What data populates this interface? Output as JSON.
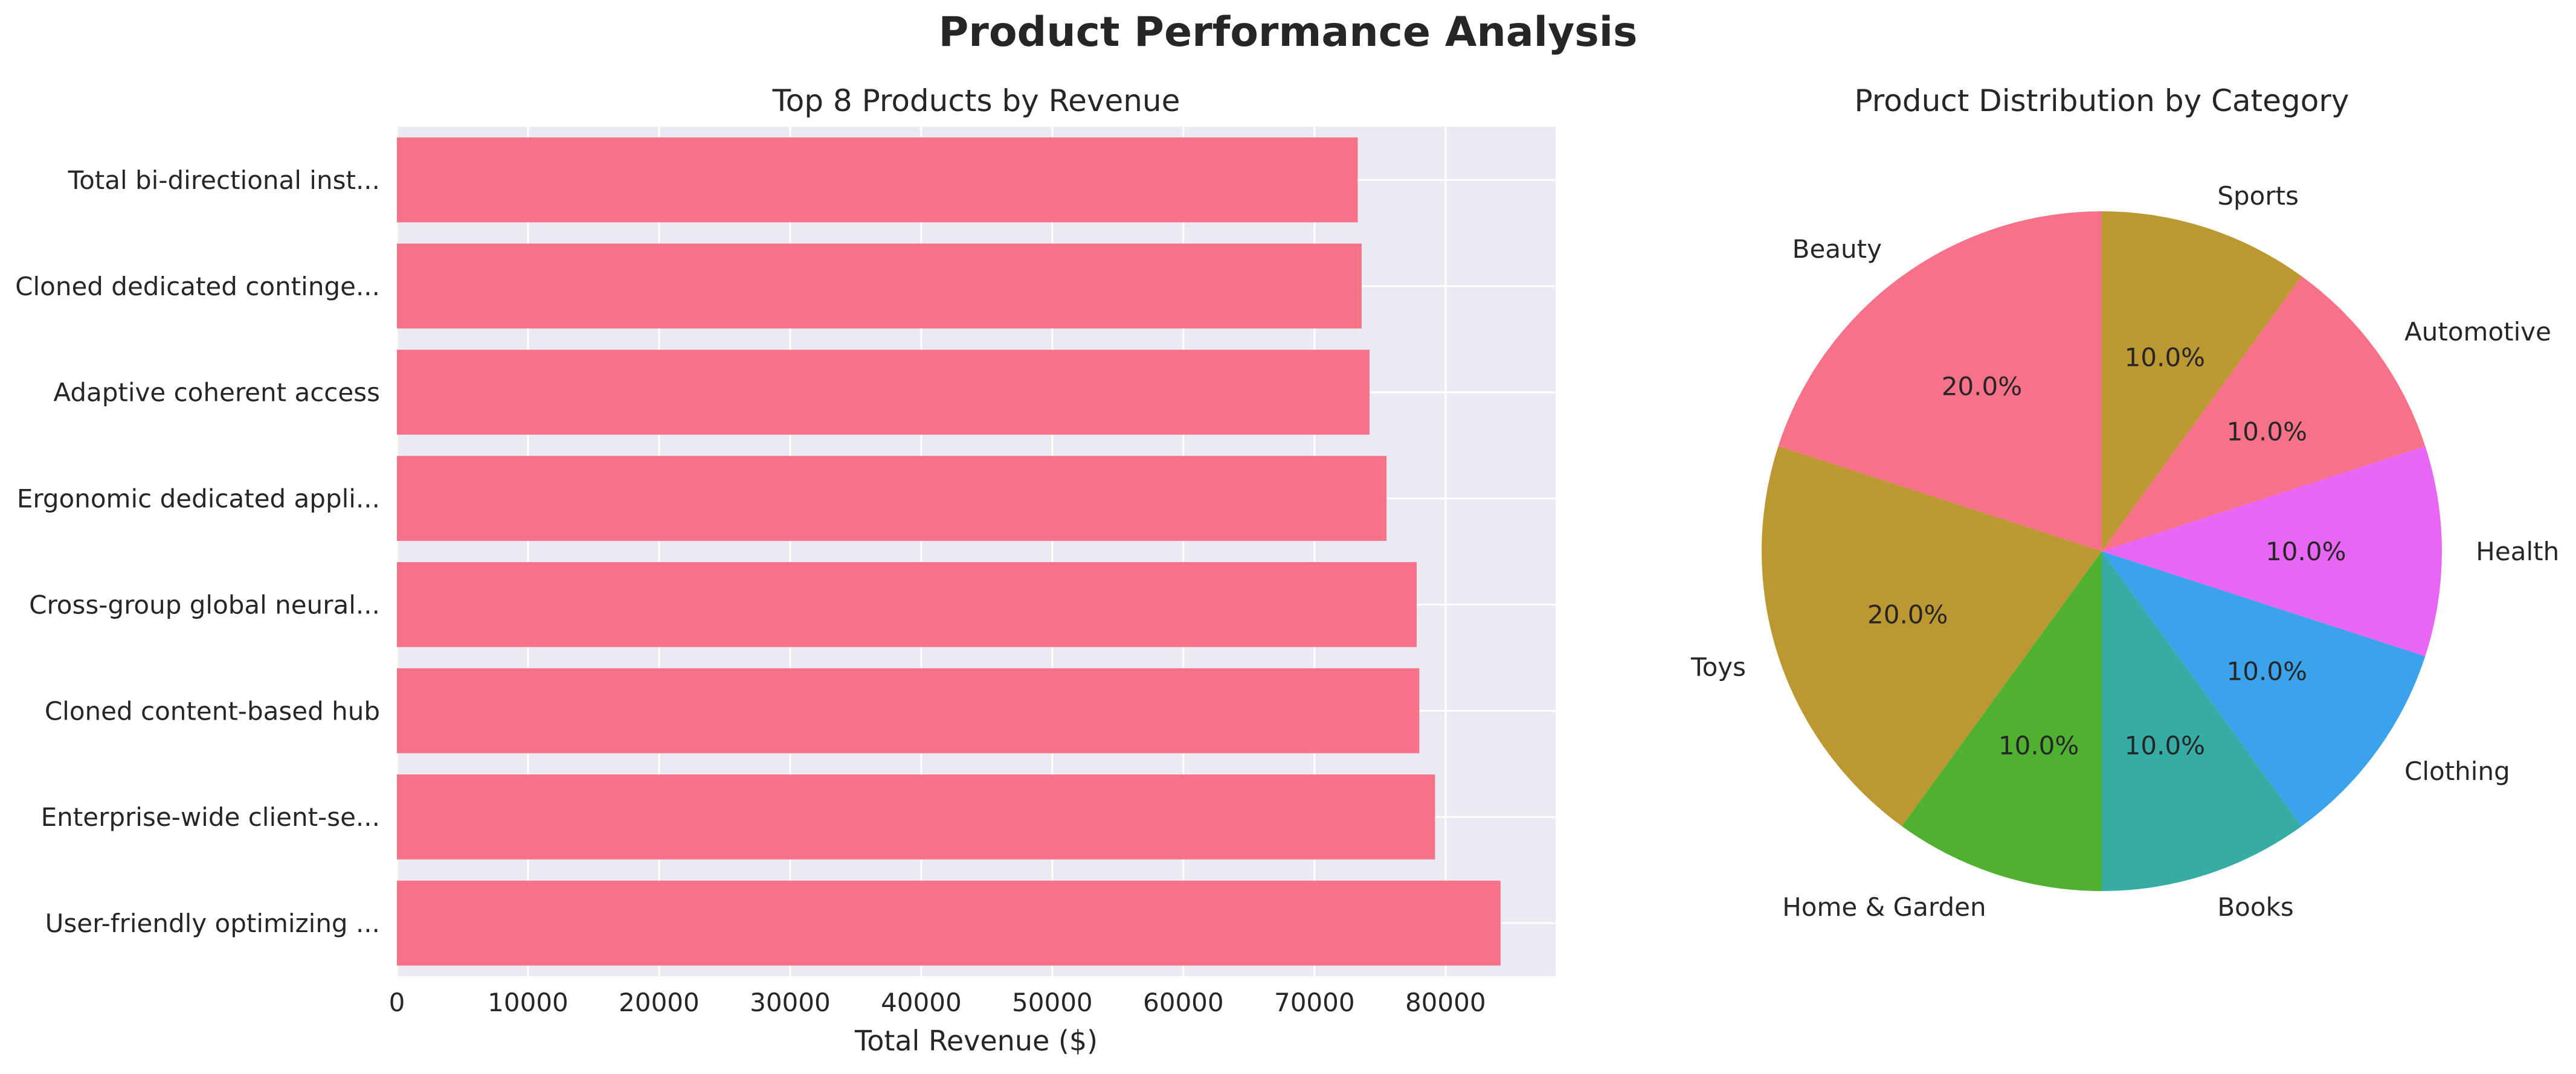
{
  "figure": {
    "title": "Product Performance Analysis"
  },
  "chart_data": [
    {
      "type": "bar",
      "orientation": "horizontal",
      "title": "Top 8 Products by Revenue",
      "xlabel": "Total Revenue ($)",
      "ylabel": "",
      "categories": [
        "User-friendly optimizing ...",
        "Enterprise-wide client-se...",
        "Cloned content-based hub",
        "Cross-group global neural...",
        "Ergonomic dedicated appli...",
        "Adaptive coherent access",
        "Cloned dedicated continge...",
        "Total bi-directional inst..."
      ],
      "values": [
        84200,
        79200,
        78000,
        77800,
        75500,
        74200,
        73600,
        73300
      ],
      "xlim": [
        0,
        88400
      ],
      "xticks": [
        0,
        10000,
        20000,
        30000,
        40000,
        50000,
        60000,
        70000,
        80000
      ],
      "xtick_labels": [
        "0",
        "10000",
        "20000",
        "30000",
        "40000",
        "50000",
        "60000",
        "70000",
        "80000"
      ],
      "grid": true,
      "bar_color": "#f77189",
      "background": "#eaeaf2"
    },
    {
      "type": "pie",
      "title": "Product Distribution by Category",
      "start_angle": 90,
      "direction": "counterclockwise",
      "slices": [
        {
          "label": "Beauty",
          "value": 20.0,
          "pct_label": "20.0%",
          "color": "#f77189"
        },
        {
          "label": "Toys",
          "value": 20.0,
          "pct_label": "20.0%",
          "color": "#bb9832"
        },
        {
          "label": "Home & Garden",
          "value": 10.0,
          "pct_label": "10.0%",
          "color": "#50b131"
        },
        {
          "label": "Books",
          "value": 10.0,
          "pct_label": "10.0%",
          "color": "#36ada4"
        },
        {
          "label": "Clothing",
          "value": 10.0,
          "pct_label": "10.0%",
          "color": "#3ba3ec"
        },
        {
          "label": "Health",
          "value": 10.0,
          "pct_label": "10.0%",
          "color": "#e866f4"
        },
        {
          "label": "Automotive",
          "value": 10.0,
          "pct_label": "10.0%",
          "color": "#f77189"
        },
        {
          "label": "Sports",
          "value": 10.0,
          "pct_label": "10.0%",
          "color": "#bb9832"
        }
      ]
    }
  ]
}
